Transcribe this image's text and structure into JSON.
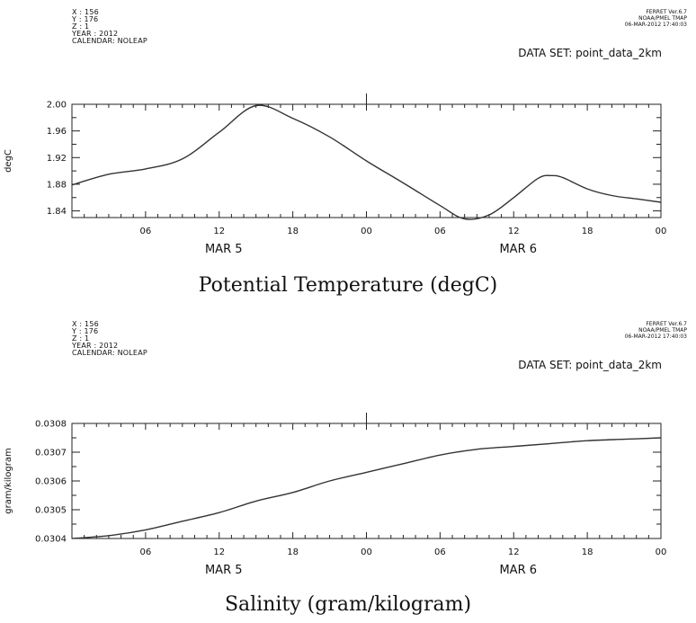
{
  "panels": [
    {
      "meta": [
        "X : 156",
        "Y : 176",
        "Z : 1",
        "YEAR : 2012",
        "CALENDAR: NOLEAP"
      ],
      "ferret": [
        "FERRET Ver.6.7",
        "NOAA/PMEL TMAP",
        "06-MAR-2012 17:40:03"
      ],
      "dataset": "DATA SET: point_data_2km",
      "title": "Potential Temperature (degC)"
    },
    {
      "meta": [
        "X : 156",
        "Y : 176",
        "Z : 1",
        "YEAR : 2012",
        "CALENDAR: NOLEAP"
      ],
      "ferret": [
        "FERRET Ver.6.7",
        "NOAA/PMEL TMAP",
        "06-MAR-2012 17:40:03"
      ],
      "dataset": "DATA SET: point_data_2km",
      "title": "Salinity (gram/kilogram)"
    }
  ],
  "chart_data": [
    {
      "type": "line",
      "title": "Potential Temperature (degC)",
      "xlabel": "",
      "ylabel": "degC",
      "x": [
        "2012-03-05T00:00",
        "2012-03-05T03:00",
        "2012-03-05T06:00",
        "2012-03-05T09:00",
        "2012-03-05T12:00",
        "2012-03-05T15:00",
        "2012-03-05T18:00",
        "2012-03-05T21:00",
        "2012-03-06T00:00",
        "2012-03-06T03:00",
        "2012-03-06T06:00",
        "2012-03-06T08:00",
        "2012-03-06T10:00",
        "2012-03-06T12:00",
        "2012-03-06T14:00",
        "2012-03-06T15:00",
        "2012-03-06T16:00",
        "2012-03-06T18:00",
        "2012-03-06T20:00",
        "2012-03-06T22:00",
        "2012-03-07T00:00"
      ],
      "series": [
        {
          "values": [
            1.879,
            1.895,
            1.903,
            1.918,
            1.958,
            1.998,
            1.979,
            1.951,
            1.915,
            1.882,
            1.848,
            1.828,
            1.834,
            1.86,
            1.889,
            1.893,
            1.89,
            1.873,
            1.863,
            1.858,
            1.853
          ]
        }
      ],
      "ylim": [
        1.83,
        2.0
      ],
      "yticks": [
        "2.00",
        "1.96",
        "1.92",
        "1.88",
        "1.84"
      ],
      "xticks": [
        "06",
        "12",
        "18",
        "00",
        "06",
        "12",
        "18",
        "00"
      ],
      "day_labels": [
        "MAR  5",
        "MAR  6"
      ],
      "grid": false
    },
    {
      "type": "line",
      "title": "Salinity (gram/kilogram)",
      "xlabel": "",
      "ylabel": "gram/kilogram",
      "x": [
        "2012-03-05T00:00",
        "2012-03-05T03:00",
        "2012-03-05T06:00",
        "2012-03-05T09:00",
        "2012-03-05T12:00",
        "2012-03-05T15:00",
        "2012-03-05T18:00",
        "2012-03-05T21:00",
        "2012-03-06T00:00",
        "2012-03-06T03:00",
        "2012-03-06T06:00",
        "2012-03-06T09:00",
        "2012-03-06T12:00",
        "2012-03-06T15:00",
        "2012-03-06T18:00",
        "2012-03-06T21:00",
        "2012-03-07T00:00"
      ],
      "series": [
        {
          "values": [
            0.0304,
            0.03041,
            0.03043,
            0.03046,
            0.03049,
            0.03053,
            0.03056,
            0.0306,
            0.03063,
            0.03066,
            0.03069,
            0.03071,
            0.03072,
            0.03073,
            0.03074,
            0.030745,
            0.03075
          ]
        }
      ],
      "ylim": [
        0.0304,
        0.0308
      ],
      "yticks": [
        "0.0308",
        "0.0307",
        "0.0306",
        "0.0305",
        "0.0304"
      ],
      "xticks": [
        "06",
        "12",
        "18",
        "00",
        "06",
        "12",
        "18",
        "00"
      ],
      "day_labels": [
        "MAR  5",
        "MAR  6"
      ],
      "grid": false
    }
  ]
}
